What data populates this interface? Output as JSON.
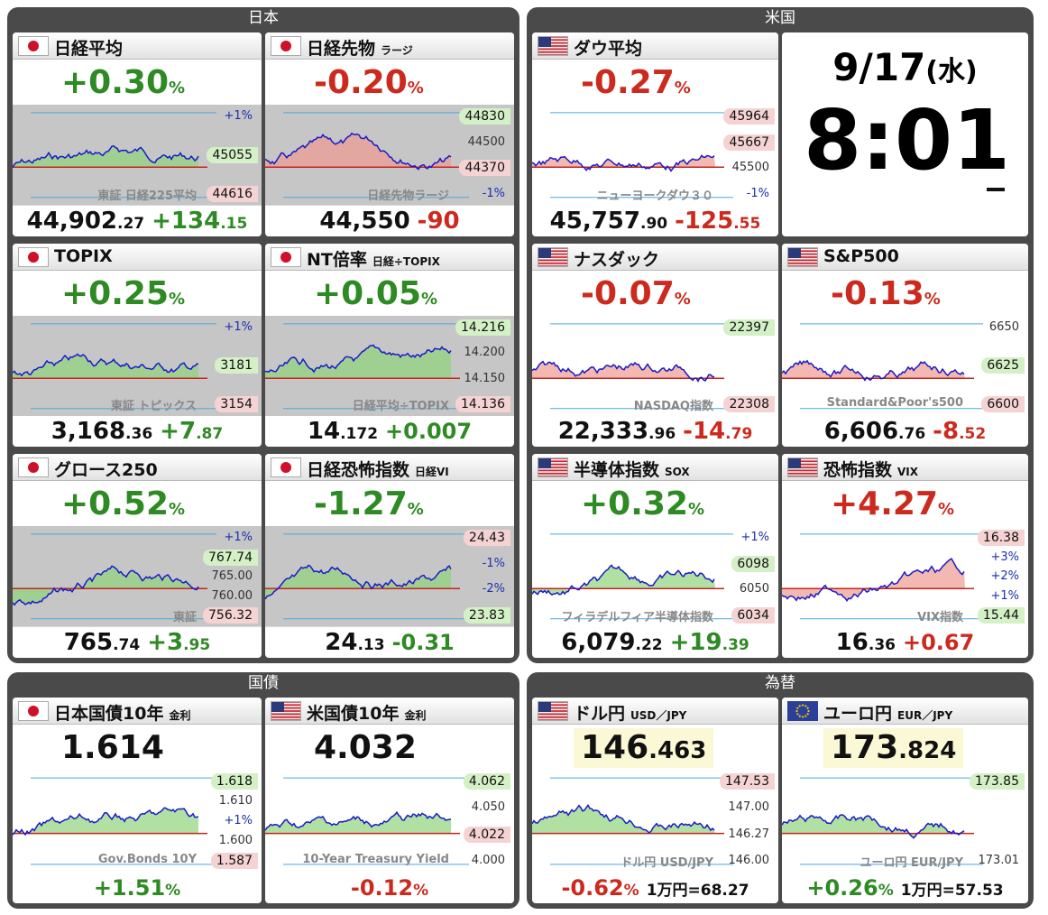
{
  "sections": [
    {
      "title": "日本",
      "cards": [
        {
          "flag": "jp",
          "name": "日経平均",
          "top": [
            {
              "text": "+0.30",
              "tone": "up",
              "size": "l"
            },
            {
              "text": "%",
              "tone": "up",
              "size": "s"
            }
          ],
          "chart": {
            "bg": "gray",
            "labels": [
              {
                "text": "+1%",
                "tone": "pct"
              },
              {
                "text": "45055",
                "tone": "up"
              },
              {
                "text": "44616",
                "tone": "down"
              }
            ],
            "watermark": "東証 日経225平均"
          },
          "bottom": [
            {
              "text": "44,902",
              "tone": "plain",
              "size": "l"
            },
            {
              "text": ".27",
              "tone": "plain",
              "size": "s"
            },
            {
              "text": "+134",
              "tone": "up",
              "size": "l"
            },
            {
              "text": ".15",
              "tone": "up",
              "size": "s"
            }
          ]
        },
        {
          "flag": "jp",
          "name": "日経先物",
          "sub": "ラージ",
          "top": [
            {
              "text": "-0.20",
              "tone": "down",
              "size": "l"
            },
            {
              "text": "%",
              "tone": "down",
              "size": "s"
            }
          ],
          "chart": {
            "bg": "gray",
            "labels": [
              {
                "text": "44830",
                "tone": "up"
              },
              {
                "text": "44500",
                "tone": "plain"
              },
              {
                "text": "44370",
                "tone": "down"
              },
              {
                "text": "-1%",
                "tone": "pct"
              }
            ],
            "watermark": "日経先物ラージ"
          },
          "bottom": [
            {
              "text": "44,550",
              "tone": "plain",
              "size": "l"
            },
            {
              "text": "-90",
              "tone": "down",
              "size": "l"
            }
          ]
        },
        {
          "flag": "jp",
          "name": "TOPIX",
          "top": [
            {
              "text": "+0.25",
              "tone": "up",
              "size": "l"
            },
            {
              "text": "%",
              "tone": "up",
              "size": "s"
            }
          ],
          "chart": {
            "bg": "gray",
            "labels": [
              {
                "text": "+1%",
                "tone": "pct"
              },
              {
                "text": "3181",
                "tone": "up"
              },
              {
                "text": "3154",
                "tone": "down"
              }
            ],
            "watermark": "東証 トピックス"
          },
          "bottom": [
            {
              "text": "3,168",
              "tone": "plain",
              "size": "l"
            },
            {
              "text": ".36",
              "tone": "plain",
              "size": "s"
            },
            {
              "text": "+7",
              "tone": "up",
              "size": "l"
            },
            {
              "text": ".87",
              "tone": "up",
              "size": "s"
            }
          ]
        },
        {
          "flag": "jp",
          "name": "NT倍率",
          "sub": "日経÷TOPIX",
          "top": [
            {
              "text": "+0.05",
              "tone": "up",
              "size": "l"
            },
            {
              "text": "%",
              "tone": "up",
              "size": "s"
            }
          ],
          "chart": {
            "bg": "gray",
            "labels": [
              {
                "text": "14.216",
                "tone": "up"
              },
              {
                "text": "14.200",
                "tone": "plain"
              },
              {
                "text": "14.150",
                "tone": "plain"
              },
              {
                "text": "14.136",
                "tone": "down"
              }
            ],
            "watermark": "日経平均÷TOPIX"
          },
          "bottom": [
            {
              "text": "14",
              "tone": "plain",
              "size": "l"
            },
            {
              "text": ".172",
              "tone": "plain",
              "size": "s"
            },
            {
              "text": "+0.007",
              "tone": "up",
              "size": "m"
            }
          ]
        },
        {
          "flag": "jp",
          "name": "グロース250",
          "top": [
            {
              "text": "+0.52",
              "tone": "up",
              "size": "l"
            },
            {
              "text": "%",
              "tone": "up",
              "size": "s"
            }
          ],
          "chart": {
            "bg": "gray",
            "labels": [
              {
                "text": "+1%",
                "tone": "pct"
              },
              {
                "text": "767.74",
                "tone": "up"
              },
              {
                "text": "765.00",
                "tone": "plain"
              },
              {
                "text": "760.00",
                "tone": "plain"
              },
              {
                "text": "756.32",
                "tone": "down"
              }
            ],
            "watermark": "東証"
          },
          "bottom": [
            {
              "text": "765",
              "tone": "plain",
              "size": "l"
            },
            {
              "text": ".74",
              "tone": "plain",
              "size": "s"
            },
            {
              "text": "+3",
              "tone": "up",
              "size": "l"
            },
            {
              "text": ".95",
              "tone": "up",
              "size": "s"
            }
          ]
        },
        {
          "flag": "jp",
          "name": "日経恐怖指数",
          "sub": "日経VI",
          "top": [
            {
              "text": "-1.27",
              "tone": "up",
              "size": "l"
            },
            {
              "text": "%",
              "tone": "up",
              "size": "s"
            }
          ],
          "chart": {
            "bg": "gray",
            "labels": [
              {
                "text": "24.43",
                "tone": "down"
              },
              {
                "text": "-1%",
                "tone": "pct"
              },
              {
                "text": "-2%",
                "tone": "pct"
              },
              {
                "text": "23.83",
                "tone": "up"
              }
            ]
          },
          "bottom": [
            {
              "text": "24",
              "tone": "plain",
              "size": "l"
            },
            {
              "text": ".13",
              "tone": "plain",
              "size": "s"
            },
            {
              "text": "-0.31",
              "tone": "up",
              "size": "m"
            }
          ]
        }
      ]
    },
    {
      "title": "米国",
      "cards": [
        {
          "flag": "us",
          "name": "ダウ平均",
          "top": [
            {
              "text": "-0.27",
              "tone": "down",
              "size": "l"
            },
            {
              "text": "%",
              "tone": "down",
              "size": "s"
            }
          ],
          "chart": {
            "bg": "white",
            "labels": [
              {
                "text": "45964",
                "tone": "down"
              },
              {
                "text": "45667",
                "tone": "down"
              },
              {
                "text": "45500",
                "tone": "plain"
              },
              {
                "text": "-1%",
                "tone": "pct"
              }
            ],
            "watermark": "ニューヨークダウ３０"
          },
          "bottom": [
            {
              "text": "45,757",
              "tone": "plain",
              "size": "l"
            },
            {
              "text": ".90",
              "tone": "plain",
              "size": "s"
            },
            {
              "text": "-125",
              "tone": "down",
              "size": "l"
            },
            {
              "text": ".55",
              "tone": "down",
              "size": "s"
            }
          ]
        },
        {
          "clock": {
            "date": "9/17",
            "dow": "(水)",
            "time": "8:01"
          }
        },
        {
          "flag": "us",
          "name": "ナスダック",
          "top": [
            {
              "text": "-0.07",
              "tone": "down",
              "size": "l"
            },
            {
              "text": "%",
              "tone": "down",
              "size": "s"
            }
          ],
          "chart": {
            "bg": "white",
            "labels": [
              {
                "text": "22397",
                "tone": "up"
              },
              {
                "text": "22308",
                "tone": "down"
              }
            ],
            "watermark": "NASDAQ指数"
          },
          "bottom": [
            {
              "text": "22,333",
              "tone": "plain",
              "size": "l"
            },
            {
              "text": ".96",
              "tone": "plain",
              "size": "s"
            },
            {
              "text": "-14",
              "tone": "down",
              "size": "l"
            },
            {
              "text": ".79",
              "tone": "down",
              "size": "s"
            }
          ]
        },
        {
          "flag": "us",
          "name": "S&P500",
          "top": [
            {
              "text": "-0.13",
              "tone": "down",
              "size": "l"
            },
            {
              "text": "%",
              "tone": "down",
              "size": "s"
            }
          ],
          "chart": {
            "bg": "white",
            "labels": [
              {
                "text": "6650",
                "tone": "plain"
              },
              {
                "text": "6625",
                "tone": "up"
              },
              {
                "text": "6600",
                "tone": "down"
              }
            ],
            "watermark": "Standard&Poor's500"
          },
          "bottom": [
            {
              "text": "6,606",
              "tone": "plain",
              "size": "l"
            },
            {
              "text": ".76",
              "tone": "plain",
              "size": "s"
            },
            {
              "text": "-8",
              "tone": "down",
              "size": "l"
            },
            {
              "text": ".52",
              "tone": "down",
              "size": "s"
            }
          ]
        },
        {
          "flag": "us",
          "name": "半導体指数",
          "sub": "SOX",
          "top": [
            {
              "text": "+0.32",
              "tone": "up",
              "size": "l"
            },
            {
              "text": "%",
              "tone": "up",
              "size": "s"
            }
          ],
          "chart": {
            "bg": "white",
            "labels": [
              {
                "text": "+1%",
                "tone": "pct"
              },
              {
                "text": "6098",
                "tone": "up"
              },
              {
                "text": "6050",
                "tone": "plain"
              },
              {
                "text": "6034",
                "tone": "down"
              }
            ],
            "watermark": "フィラデルフィア半導体指数"
          },
          "bottom": [
            {
              "text": "6,079",
              "tone": "plain",
              "size": "l"
            },
            {
              "text": ".22",
              "tone": "plain",
              "size": "s"
            },
            {
              "text": "+19",
              "tone": "up",
              "size": "l"
            },
            {
              "text": ".39",
              "tone": "up",
              "size": "s"
            }
          ]
        },
        {
          "flag": "us",
          "name": "恐怖指数",
          "sub": "VIX",
          "top": [
            {
              "text": "+4.27",
              "tone": "down",
              "size": "l"
            },
            {
              "text": "%",
              "tone": "down",
              "size": "s"
            }
          ],
          "chart": {
            "bg": "white",
            "labels": [
              {
                "text": "16.38",
                "tone": "down"
              },
              {
                "text": "+3%",
                "tone": "pct"
              },
              {
                "text": "+2%",
                "tone": "pct"
              },
              {
                "text": "+1%",
                "tone": "pct"
              },
              {
                "text": "15.44",
                "tone": "up"
              }
            ],
            "watermark": "VIX指数"
          },
          "bottom": [
            {
              "text": "16",
              "tone": "plain",
              "size": "l"
            },
            {
              "text": ".36",
              "tone": "plain",
              "size": "s"
            },
            {
              "text": "+0.67",
              "tone": "down",
              "size": "m"
            }
          ]
        }
      ]
    },
    {
      "title": "国債",
      "cards": [
        {
          "flag": "jp",
          "name": "日本国債10年",
          "sub": "金利",
          "top": [
            {
              "text": "1.614",
              "tone": "plain",
              "size": "l"
            }
          ],
          "chart": {
            "bg": "white",
            "labels": [
              {
                "text": "1.618",
                "tone": "up"
              },
              {
                "text": "1.610",
                "tone": "plain"
              },
              {
                "text": "+1%",
                "tone": "pct"
              },
              {
                "text": "1.600",
                "tone": "plain"
              },
              {
                "text": "1.587",
                "tone": "down"
              }
            ],
            "watermark": "Gov.Bonds 10Y"
          },
          "bottom": [
            {
              "text": "+1.51",
              "tone": "up",
              "size": "m"
            },
            {
              "text": "%",
              "tone": "up",
              "size": "s"
            }
          ]
        },
        {
          "flag": "us",
          "name": "米国債10年",
          "sub": "金利",
          "top": [
            {
              "text": "4.032",
              "tone": "plain",
              "size": "l"
            }
          ],
          "chart": {
            "bg": "white",
            "labels": [
              {
                "text": "4.062",
                "tone": "up"
              },
              {
                "text": "4.050",
                "tone": "plain"
              },
              {
                "text": "4.022",
                "tone": "down"
              },
              {
                "text": "4.000",
                "tone": "plain"
              }
            ],
            "watermark": "10-Year Treasury Yield"
          },
          "bottom": [
            {
              "text": "-0.12",
              "tone": "down",
              "size": "m"
            },
            {
              "text": "%",
              "tone": "down",
              "size": "s"
            }
          ]
        }
      ]
    },
    {
      "title": "為替",
      "cards": [
        {
          "flag": "us",
          "name": "ドル円",
          "sub": "USD／JPY",
          "hl": true,
          "top": [
            {
              "text": "146",
              "tone": "plain",
              "size": "l"
            },
            {
              "text": ".463",
              "tone": "plain",
              "size": "m"
            }
          ],
          "chart": {
            "bg": "white",
            "labels": [
              {
                "text": "147.53",
                "tone": "down"
              },
              {
                "text": "147.00",
                "tone": "plain"
              },
              {
                "text": "146.27",
                "tone": "plain"
              },
              {
                "text": "146.00",
                "tone": "plain"
              }
            ],
            "watermark": "ドル円 USD/JPY"
          },
          "bottom": [
            {
              "text": "-0.62",
              "tone": "down",
              "size": "m"
            },
            {
              "text": "%",
              "tone": "down",
              "size": "s"
            },
            {
              "text": "1万円=68.27",
              "tone": "plain",
              "size": "s"
            }
          ]
        },
        {
          "flag": "eu",
          "name": "ユーロ円",
          "sub": "EUR／JPY",
          "hl": true,
          "top": [
            {
              "text": "173",
              "tone": "plain",
              "size": "l"
            },
            {
              "text": ".824",
              "tone": "plain",
              "size": "m"
            }
          ],
          "chart": {
            "bg": "white",
            "labels": [
              {
                "text": "173.85",
                "tone": "up"
              },
              {
                "text": "173.01",
                "tone": "plain"
              }
            ],
            "watermark": "ユーロ円 EUR/JPY"
          },
          "bottom": [
            {
              "text": "+0.26",
              "tone": "up",
              "size": "m"
            },
            {
              "text": "%",
              "tone": "up",
              "size": "s"
            },
            {
              "text": "1万円=57.53",
              "tone": "plain",
              "size": "s"
            }
          ]
        }
      ]
    }
  ]
}
